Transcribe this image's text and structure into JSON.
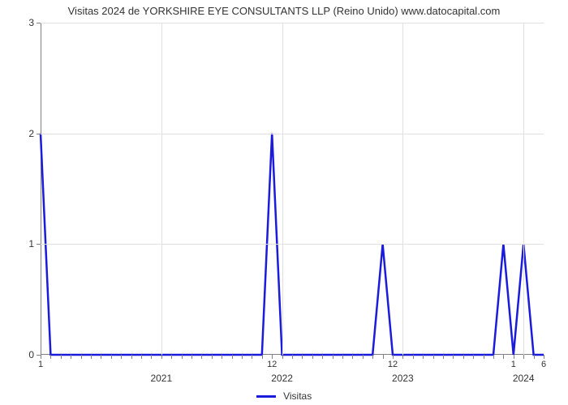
{
  "chart": {
    "type": "line",
    "title": "Visitas 2024 de YORKSHIRE EYE CONSULTANTS LLP (Reino Unido) www.datocapital.com",
    "title_fontsize": 13,
    "title_color": "#333333",
    "background_color": "#ffffff",
    "plot_background_color": "#ffffff",
    "grid_color": "#e0e0e0",
    "axis_color": "#808080",
    "series": {
      "label": "Visitas",
      "color": "#1b1bdc",
      "stroke_width": 2.5,
      "y": [
        2,
        0,
        0,
        0,
        0,
        0,
        0,
        0,
        0,
        0,
        0,
        0,
        0,
        0,
        0,
        0,
        0,
        0,
        0,
        0,
        0,
        0,
        0,
        2,
        0,
        0,
        0,
        0,
        0,
        0,
        0,
        0,
        0,
        0,
        1,
        0,
        0,
        0,
        0,
        0,
        0,
        0,
        0,
        0,
        0,
        0,
        1,
        0,
        1,
        0,
        0
      ]
    },
    "y_axis": {
      "lim": [
        0,
        3
      ],
      "ticks": [
        0,
        1,
        2,
        3
      ],
      "label_fontsize": 12
    },
    "x_axis": {
      "n_points": 51,
      "sub_ticks": [
        {
          "index": 0,
          "label": "1"
        },
        {
          "index": 23,
          "label": "12"
        },
        {
          "index": 35,
          "label": "12"
        },
        {
          "index": 47,
          "label": "1"
        },
        {
          "index": 50,
          "label": "6"
        }
      ],
      "year_ticks": [
        {
          "index": 12,
          "label": "2021"
        },
        {
          "index": 24,
          "label": "2022"
        },
        {
          "index": 36,
          "label": "2023"
        },
        {
          "index": 48,
          "label": "2024"
        }
      ],
      "minor_tick_every": 1,
      "label_fontsize": 11
    },
    "legend": {
      "position": "bottom",
      "label": "Visitas"
    }
  }
}
